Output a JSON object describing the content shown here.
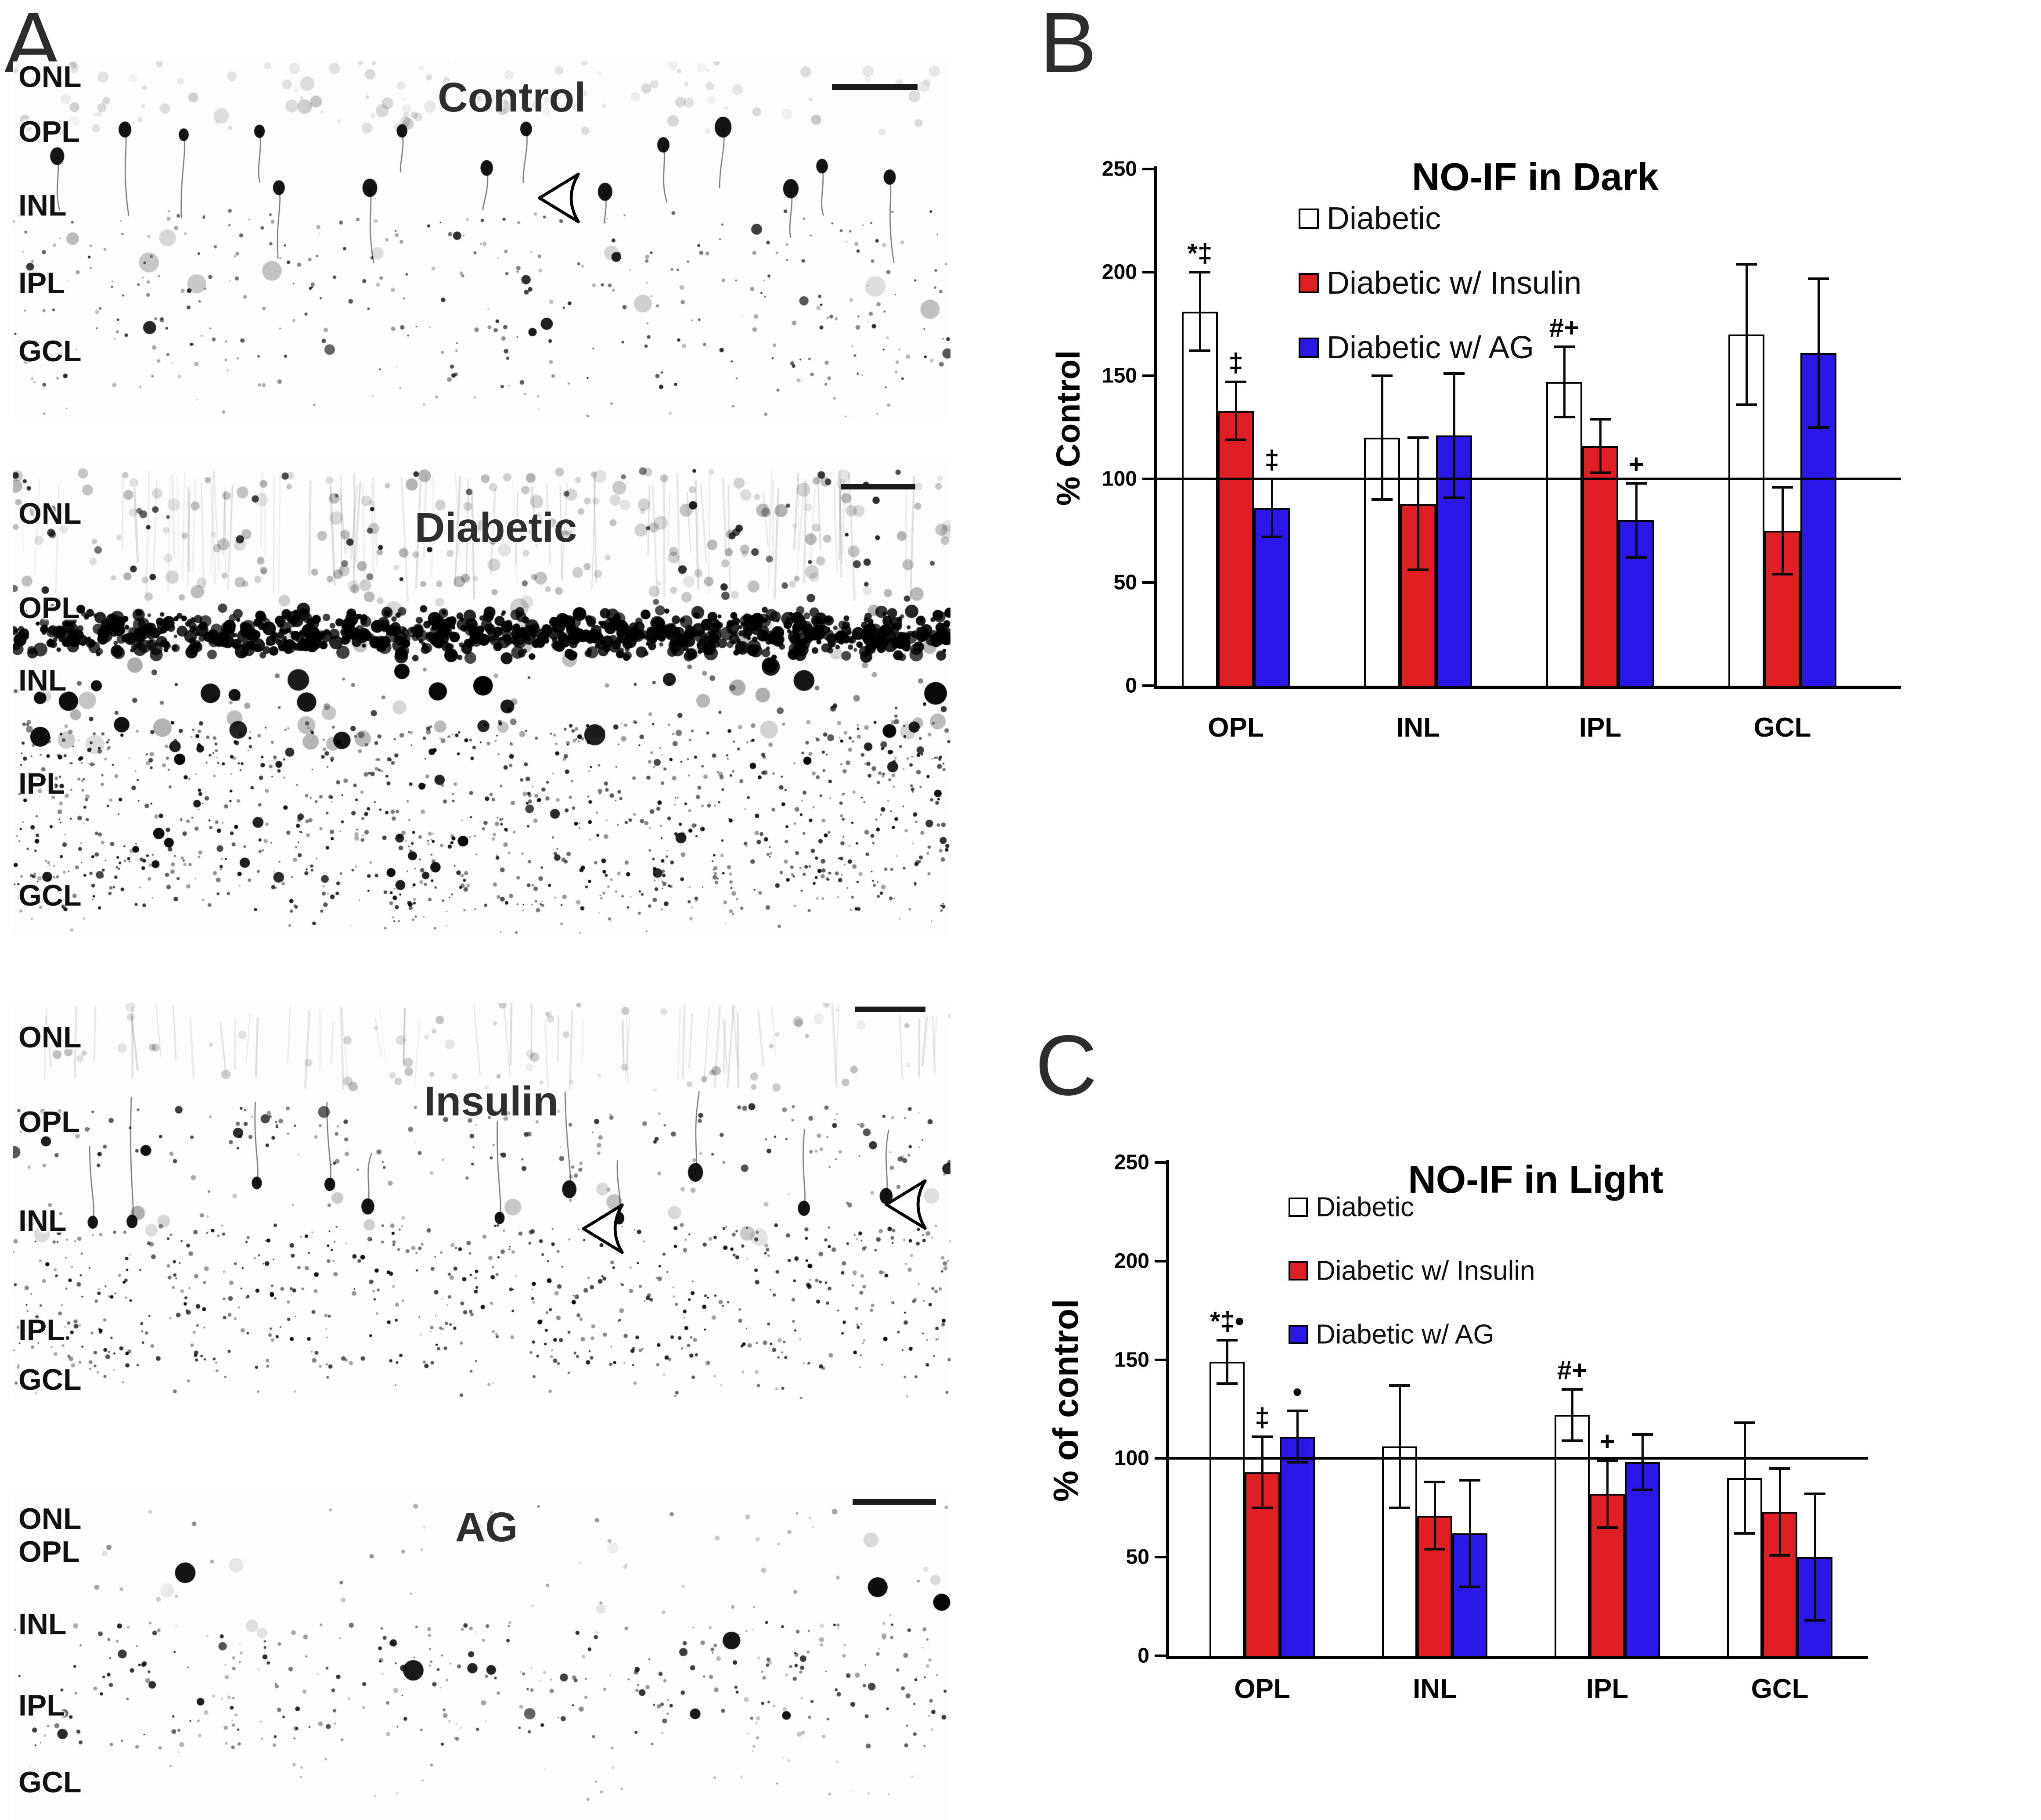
{
  "panels": {
    "A": {
      "label": "A",
      "micrographs": [
        {
          "title": "Control",
          "layer_labels": [
            "ONL",
            "OPL",
            "INL",
            "IPL",
            "GCL"
          ],
          "scale_bar": true,
          "arrowheads": 1
        },
        {
          "title": "Diabetic",
          "layer_labels": [
            "ONL",
            "OPL",
            "INL",
            "IPL",
            "GCL"
          ],
          "scale_bar": true,
          "arrowheads": 0
        },
        {
          "title": "Insulin",
          "layer_labels": [
            "ONL",
            "OPL",
            "INL",
            "IPL",
            "GCL"
          ],
          "scale_bar": true,
          "arrowheads": 2
        },
        {
          "title": "AG",
          "layer_labels": [
            "ONL",
            "OPL",
            "INL",
            "IPL",
            "GCL"
          ],
          "scale_bar": true,
          "arrowheads": 0
        }
      ]
    },
    "B": {
      "label": "B"
    },
    "C": {
      "label": "C"
    }
  },
  "colors": {
    "diabetic": "#ffffff",
    "insulin": "#df1f23",
    "ag": "#2b18e8",
    "axis": "#000000"
  },
  "chart_data": [
    {
      "type": "bar",
      "panel": "B",
      "title": "NO-IF in Dark",
      "xlabel": "",
      "ylabel": "% Control",
      "ylim": [
        0,
        250
      ],
      "yticks": [
        0,
        50,
        100,
        150,
        200,
        250
      ],
      "reference_line": 100,
      "grid": false,
      "legend_position": "top-left-inside",
      "categories": [
        "OPL",
        "INL",
        "IPL",
        "GCL"
      ],
      "series": [
        {
          "name": "Diabetic",
          "color": "#ffffff",
          "values": [
            181,
            120,
            147,
            170
          ],
          "errors": [
            19,
            30,
            17,
            34
          ],
          "annotations": [
            "*‡",
            "",
            "#+",
            ""
          ]
        },
        {
          "name": "Diabetic w/ Insulin",
          "color": "#df1f23",
          "values": [
            133,
            88,
            116,
            75
          ],
          "errors": [
            14,
            32,
            13,
            21
          ],
          "annotations": [
            "‡",
            "",
            "",
            ""
          ]
        },
        {
          "name": "Diabetic w/ AG",
          "color": "#2b18e8",
          "values": [
            86,
            121,
            80,
            161
          ],
          "errors": [
            14,
            30,
            18,
            36
          ],
          "annotations": [
            "‡",
            "",
            "+",
            ""
          ]
        }
      ]
    },
    {
      "type": "bar",
      "panel": "C",
      "title": "NO-IF in Light",
      "xlabel": "",
      "ylabel": "% of control",
      "ylim": [
        0,
        250
      ],
      "yticks": [
        0,
        50,
        100,
        150,
        200,
        250
      ],
      "reference_line": 100,
      "grid": false,
      "legend_position": "top-left-inside",
      "categories": [
        "OPL",
        "INL",
        "IPL",
        "GCL"
      ],
      "series": [
        {
          "name": "Diabetic",
          "color": "#ffffff",
          "values": [
            149,
            106,
            122,
            90
          ],
          "errors": [
            11,
            31,
            13,
            28
          ],
          "annotations": [
            "*‡•",
            "",
            "#+",
            ""
          ]
        },
        {
          "name": "Diabetic w/ Insulin",
          "color": "#df1f23",
          "values": [
            93,
            71,
            82,
            73
          ],
          "errors": [
            18,
            17,
            17,
            22
          ],
          "annotations": [
            "‡",
            "",
            "+",
            ""
          ]
        },
        {
          "name": "Diabetic w/ AG",
          "color": "#2b18e8",
          "values": [
            111,
            62,
            98,
            50
          ],
          "errors": [
            13,
            27,
            14,
            32
          ],
          "annotations": [
            "•",
            "",
            "",
            ""
          ]
        }
      ]
    }
  ]
}
